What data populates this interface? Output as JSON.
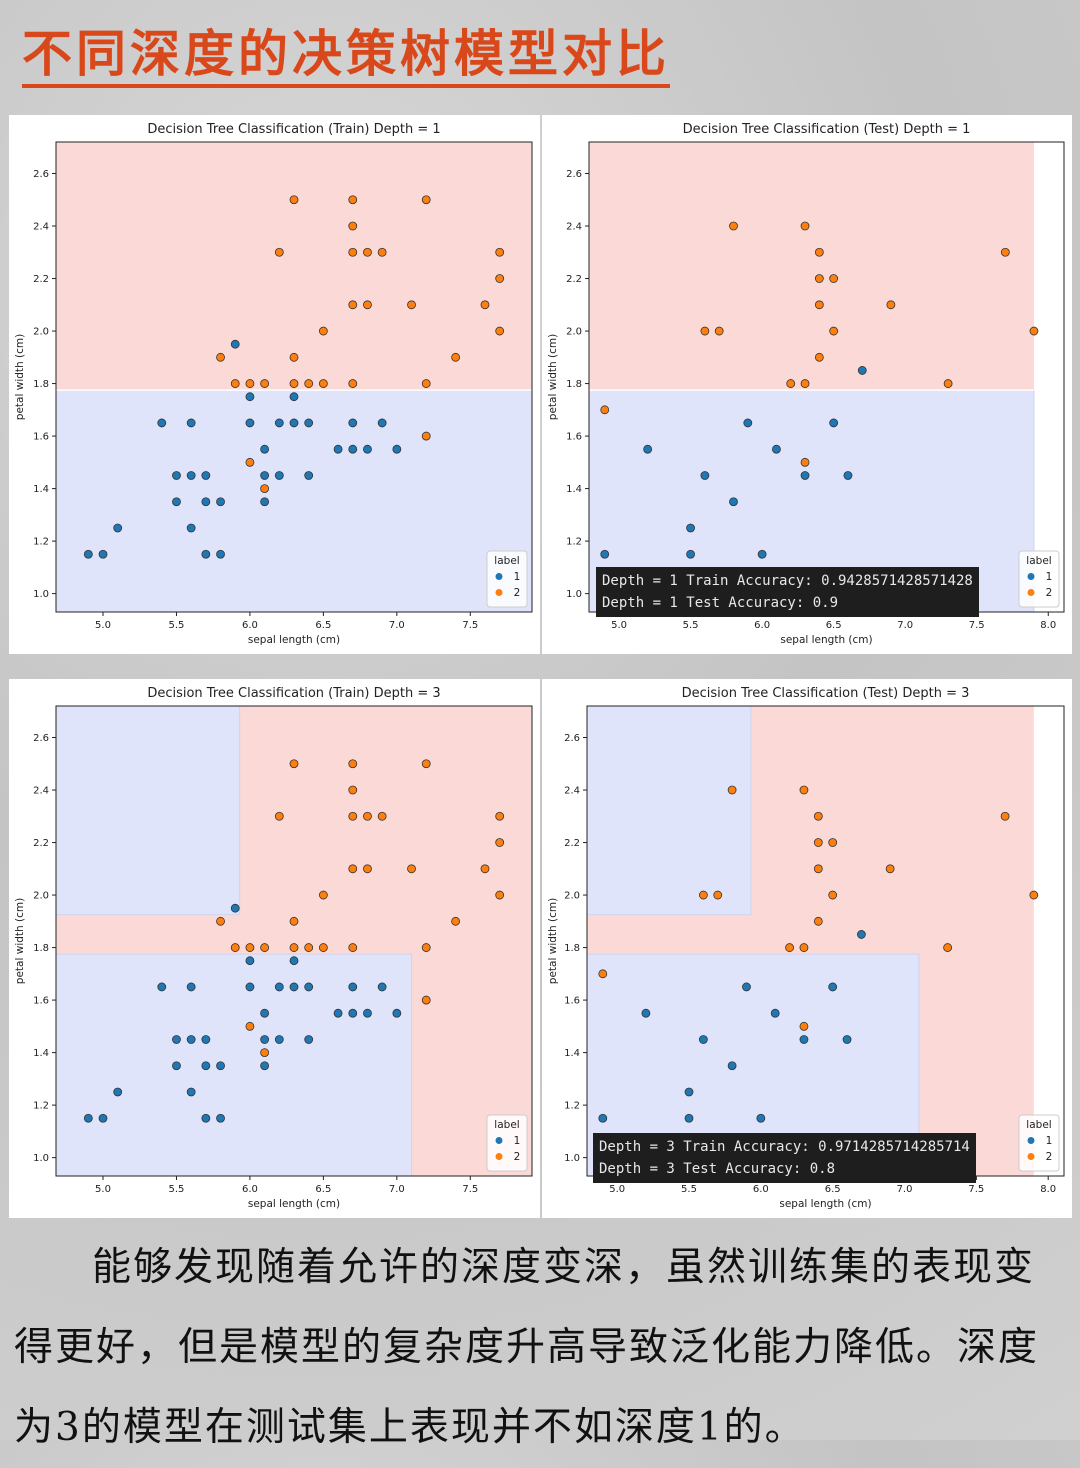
{
  "header": {
    "title": "不同深度的决策树模型对比"
  },
  "caption": "能够发现随着允许的深度变深，虽然训练集的表现变得更好，但是模型的复杂度升高导致泛化能力降低。深度为3的模型在测试集上表现并不如深度1的。",
  "colors": {
    "class1": "#1f77b4",
    "class2": "#ff7f0e",
    "region1": "#dfe4fb",
    "region2": "#fad9d7",
    "accent": "#d9481a"
  },
  "chart_data": [
    {
      "type": "scatter",
      "title": "Decision Tree Classification (Train) Depth = 1",
      "xlabel": "sepal length (cm)",
      "ylabel": "petal width (cm)",
      "xlim": [
        4.68,
        7.92
      ],
      "ylim": [
        0.93,
        2.72
      ],
      "xticks": [
        "5.0",
        "5.5",
        "6.0",
        "6.5",
        "7.0",
        "7.5"
      ],
      "yticks": [
        "1.0",
        "1.2",
        "1.4",
        "1.6",
        "1.8",
        "2.0",
        "2.2",
        "2.4",
        "2.6"
      ],
      "legend": {
        "title": "label",
        "entries": [
          "1",
          "2"
        ],
        "position": "lower-right"
      },
      "regions": [
        {
          "class": 1,
          "x": [
            4.68,
            7.92
          ],
          "y": [
            0.93,
            1.775
          ]
        },
        {
          "class": 2,
          "x": [
            4.68,
            7.92
          ],
          "y": [
            1.775,
            2.72
          ]
        }
      ],
      "series": [
        {
          "name": "1",
          "points": [
            [
              4.9,
              1.15
            ],
            [
              5.0,
              1.15
            ],
            [
              5.1,
              1.25
            ],
            [
              5.4,
              1.65
            ],
            [
              5.5,
              1.45
            ],
            [
              5.5,
              1.35
            ],
            [
              5.6,
              1.45
            ],
            [
              5.6,
              1.25
            ],
            [
              5.6,
              1.65
            ],
            [
              5.7,
              1.45
            ],
            [
              5.7,
              1.35
            ],
            [
              5.7,
              1.15
            ],
            [
              5.8,
              1.35
            ],
            [
              5.8,
              1.15
            ],
            [
              5.9,
              1.95
            ],
            [
              6.0,
              1.75
            ],
            [
              6.0,
              1.65
            ],
            [
              6.1,
              1.55
            ],
            [
              6.1,
              1.45
            ],
            [
              6.1,
              1.35
            ],
            [
              6.2,
              1.65
            ],
            [
              6.2,
              1.45
            ],
            [
              6.3,
              1.65
            ],
            [
              6.3,
              1.75
            ],
            [
              6.4,
              1.65
            ],
            [
              6.4,
              1.45
            ],
            [
              6.6,
              1.55
            ],
            [
              6.7,
              1.65
            ],
            [
              6.7,
              1.55
            ],
            [
              6.8,
              1.55
            ],
            [
              6.9,
              1.65
            ],
            [
              7.0,
              1.55
            ]
          ]
        },
        {
          "name": "2",
          "points": [
            [
              5.8,
              1.9
            ],
            [
              5.9,
              1.8
            ],
            [
              6.0,
              1.8
            ],
            [
              6.0,
              1.5
            ],
            [
              6.1,
              1.8
            ],
            [
              6.1,
              1.4
            ],
            [
              6.2,
              2.3
            ],
            [
              6.3,
              2.5
            ],
            [
              6.3,
              1.9
            ],
            [
              6.3,
              1.8
            ],
            [
              6.4,
              1.8
            ],
            [
              6.5,
              2.0
            ],
            [
              6.5,
              1.8
            ],
            [
              6.7,
              2.5
            ],
            [
              6.7,
              2.4
            ],
            [
              6.7,
              2.3
            ],
            [
              6.7,
              2.1
            ],
            [
              6.7,
              1.8
            ],
            [
              6.8,
              2.3
            ],
            [
              6.8,
              2.1
            ],
            [
              6.9,
              2.3
            ],
            [
              7.1,
              2.1
            ],
            [
              7.2,
              2.5
            ],
            [
              7.2,
              1.8
            ],
            [
              7.2,
              1.6
            ],
            [
              7.4,
              1.9
            ],
            [
              7.6,
              2.1
            ],
            [
              7.7,
              2.3
            ],
            [
              7.7,
              2.2
            ],
            [
              7.7,
              2.0
            ]
          ]
        }
      ]
    },
    {
      "type": "scatter",
      "title": "Decision Tree Classification (Test) Depth = 1",
      "xlabel": "sepal length (cm)",
      "ylabel": "petal width (cm)",
      "xlim": [
        4.79,
        8.11
      ],
      "ylim": [
        0.93,
        2.72
      ],
      "xticks": [
        "5.0",
        "5.5",
        "6.0",
        "6.5",
        "7.0",
        "7.5",
        "8.0"
      ],
      "yticks": [
        "1.0",
        "1.2",
        "1.4",
        "1.6",
        "1.8",
        "2.0",
        "2.2",
        "2.4",
        "2.6"
      ],
      "legend": {
        "title": "label",
        "entries": [
          "1",
          "2"
        ],
        "position": "lower-right"
      },
      "accuracy_lines": [
        "Depth = 1 Train Accuracy: 0.9428571428571428",
        "Depth = 1 Test Accuracy: 0.9"
      ],
      "regions": [
        {
          "class": 1,
          "x": [
            4.79,
            7.9
          ],
          "y": [
            0.93,
            1.775
          ]
        },
        {
          "class": 2,
          "x": [
            4.79,
            7.9
          ],
          "y": [
            1.775,
            2.72
          ]
        }
      ],
      "series": [
        {
          "name": "1",
          "points": [
            [
              4.9,
              1.15
            ],
            [
              5.2,
              1.55
            ],
            [
              5.5,
              1.25
            ],
            [
              5.5,
              1.15
            ],
            [
              5.6,
              1.45
            ],
            [
              5.8,
              1.35
            ],
            [
              5.9,
              1.65
            ],
            [
              6.0,
              1.15
            ],
            [
              6.1,
              1.55
            ],
            [
              6.3,
              1.45
            ],
            [
              6.5,
              1.65
            ],
            [
              6.6,
              1.45
            ],
            [
              6.7,
              1.85
            ]
          ]
        },
        {
          "name": "2",
          "points": [
            [
              4.9,
              1.7
            ],
            [
              5.6,
              2.0
            ],
            [
              5.7,
              2.0
            ],
            [
              5.8,
              2.4
            ],
            [
              6.2,
              1.8
            ],
            [
              6.3,
              2.4
            ],
            [
              6.3,
              1.8
            ],
            [
              6.3,
              1.5
            ],
            [
              6.4,
              2.3
            ],
            [
              6.4,
              2.2
            ],
            [
              6.4,
              2.1
            ],
            [
              6.4,
              1.9
            ],
            [
              6.5,
              2.2
            ],
            [
              6.5,
              2.0
            ],
            [
              6.9,
              2.1
            ],
            [
              7.3,
              1.8
            ],
            [
              7.7,
              2.3
            ],
            [
              7.9,
              2.0
            ]
          ]
        }
      ]
    },
    {
      "type": "scatter",
      "title": "Decision Tree Classification (Train) Depth = 3",
      "xlabel": "sepal length (cm)",
      "ylabel": "petal width (cm)",
      "xlim": [
        4.68,
        7.92
      ],
      "ylim": [
        0.93,
        2.72
      ],
      "xticks": [
        "5.0",
        "5.5",
        "6.0",
        "6.5",
        "7.0",
        "7.5"
      ],
      "yticks": [
        "1.0",
        "1.2",
        "1.4",
        "1.6",
        "1.8",
        "2.0",
        "2.2",
        "2.4",
        "2.6"
      ],
      "legend": {
        "title": "label",
        "entries": [
          "1",
          "2"
        ],
        "position": "lower-right"
      },
      "regions": [
        {
          "class": 2,
          "x": [
            4.68,
            7.92
          ],
          "y": [
            0.93,
            2.72
          ]
        },
        {
          "class": 1,
          "x": [
            4.68,
            7.1
          ],
          "y": [
            0.93,
            1.775
          ]
        },
        {
          "class": 1,
          "x": [
            4.68,
            5.93
          ],
          "y": [
            1.925,
            2.72
          ]
        }
      ],
      "series": [
        {
          "name": "1",
          "points": [
            [
              4.9,
              1.15
            ],
            [
              5.0,
              1.15
            ],
            [
              5.1,
              1.25
            ],
            [
              5.4,
              1.65
            ],
            [
              5.5,
              1.45
            ],
            [
              5.5,
              1.35
            ],
            [
              5.6,
              1.45
            ],
            [
              5.6,
              1.25
            ],
            [
              5.6,
              1.65
            ],
            [
              5.7,
              1.45
            ],
            [
              5.7,
              1.35
            ],
            [
              5.7,
              1.15
            ],
            [
              5.8,
              1.35
            ],
            [
              5.8,
              1.15
            ],
            [
              5.9,
              1.95
            ],
            [
              6.0,
              1.75
            ],
            [
              6.0,
              1.65
            ],
            [
              6.1,
              1.55
            ],
            [
              6.1,
              1.45
            ],
            [
              6.1,
              1.35
            ],
            [
              6.2,
              1.65
            ],
            [
              6.2,
              1.45
            ],
            [
              6.3,
              1.65
            ],
            [
              6.3,
              1.75
            ],
            [
              6.4,
              1.65
            ],
            [
              6.4,
              1.45
            ],
            [
              6.6,
              1.55
            ],
            [
              6.7,
              1.65
            ],
            [
              6.7,
              1.55
            ],
            [
              6.8,
              1.55
            ],
            [
              6.9,
              1.65
            ],
            [
              7.0,
              1.55
            ]
          ]
        },
        {
          "name": "2",
          "points": [
            [
              5.8,
              1.9
            ],
            [
              5.9,
              1.8
            ],
            [
              6.0,
              1.8
            ],
            [
              6.0,
              1.5
            ],
            [
              6.1,
              1.8
            ],
            [
              6.1,
              1.4
            ],
            [
              6.2,
              2.3
            ],
            [
              6.3,
              2.5
            ],
            [
              6.3,
              1.9
            ],
            [
              6.3,
              1.8
            ],
            [
              6.4,
              1.8
            ],
            [
              6.5,
              2.0
            ],
            [
              6.5,
              1.8
            ],
            [
              6.7,
              2.5
            ],
            [
              6.7,
              2.4
            ],
            [
              6.7,
              2.3
            ],
            [
              6.7,
              2.1
            ],
            [
              6.7,
              1.8
            ],
            [
              6.8,
              2.3
            ],
            [
              6.8,
              2.1
            ],
            [
              6.9,
              2.3
            ],
            [
              7.1,
              2.1
            ],
            [
              7.2,
              2.5
            ],
            [
              7.2,
              1.8
            ],
            [
              7.2,
              1.6
            ],
            [
              7.4,
              1.9
            ],
            [
              7.6,
              2.1
            ],
            [
              7.7,
              2.3
            ],
            [
              7.7,
              2.2
            ],
            [
              7.7,
              2.0
            ]
          ]
        }
      ]
    },
    {
      "type": "scatter",
      "title": "Decision Tree Classification (Test) Depth = 3",
      "xlabel": "sepal length (cm)",
      "ylabel": "petal width (cm)",
      "xlim": [
        4.79,
        8.11
      ],
      "ylim": [
        0.93,
        2.72
      ],
      "xticks": [
        "5.0",
        "5.5",
        "6.0",
        "6.5",
        "7.0",
        "7.5",
        "8.0"
      ],
      "yticks": [
        "1.0",
        "1.2",
        "1.4",
        "1.6",
        "1.8",
        "2.0",
        "2.2",
        "2.4",
        "2.6"
      ],
      "legend": {
        "title": "label",
        "entries": [
          "1",
          "2"
        ],
        "position": "lower-right"
      },
      "accuracy_lines": [
        "Depth = 3 Train Accuracy: 0.9714285714285714",
        "Depth = 3 Test Accuracy: 0.8"
      ],
      "regions": [
        {
          "class": 2,
          "x": [
            4.79,
            7.9
          ],
          "y": [
            0.93,
            2.72
          ]
        },
        {
          "class": 1,
          "x": [
            4.79,
            7.1
          ],
          "y": [
            0.93,
            1.775
          ]
        },
        {
          "class": 1,
          "x": [
            4.79,
            5.93
          ],
          "y": [
            1.925,
            2.72
          ]
        }
      ],
      "series": [
        {
          "name": "1",
          "points": [
            [
              4.9,
              1.15
            ],
            [
              5.2,
              1.55
            ],
            [
              5.5,
              1.25
            ],
            [
              5.5,
              1.15
            ],
            [
              5.6,
              1.45
            ],
            [
              5.8,
              1.35
            ],
            [
              5.9,
              1.65
            ],
            [
              6.0,
              1.15
            ],
            [
              6.1,
              1.55
            ],
            [
              6.3,
              1.45
            ],
            [
              6.5,
              1.65
            ],
            [
              6.6,
              1.45
            ],
            [
              6.7,
              1.85
            ]
          ]
        },
        {
          "name": "2",
          "points": [
            [
              4.9,
              1.7
            ],
            [
              5.6,
              2.0
            ],
            [
              5.7,
              2.0
            ],
            [
              5.8,
              2.4
            ],
            [
              6.2,
              1.8
            ],
            [
              6.3,
              2.4
            ],
            [
              6.3,
              1.8
            ],
            [
              6.3,
              1.5
            ],
            [
              6.4,
              2.3
            ],
            [
              6.4,
              2.2
            ],
            [
              6.4,
              2.1
            ],
            [
              6.4,
              1.9
            ],
            [
              6.5,
              2.2
            ],
            [
              6.5,
              2.0
            ],
            [
              6.9,
              2.1
            ],
            [
              7.3,
              1.8
            ],
            [
              7.7,
              2.3
            ],
            [
              7.9,
              2.0
            ]
          ]
        }
      ]
    }
  ]
}
